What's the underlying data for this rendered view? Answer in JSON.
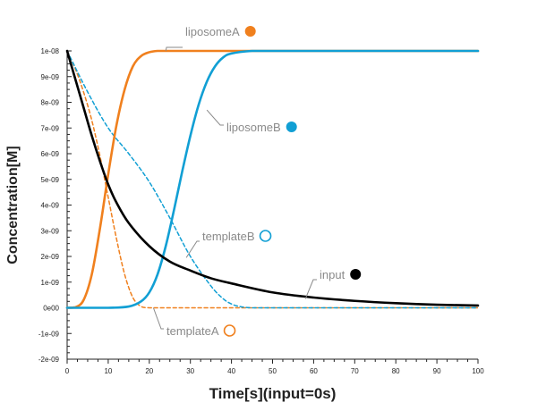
{
  "chart_data": {
    "type": "line",
    "title": "",
    "xlabel": "Time[s](input=0s)",
    "ylabel": "Concentration[M]",
    "xlim": [
      0,
      100
    ],
    "ylim": [
      -2e-09,
      1e-08
    ],
    "x_ticks": [
      0,
      10,
      20,
      30,
      40,
      50,
      60,
      70,
      80,
      90,
      100
    ],
    "x_tick_labels": [
      "0",
      "10",
      "20",
      "30",
      "40",
      "50",
      "60",
      "70",
      "80",
      "90",
      "100"
    ],
    "y_ticks": [
      1e-08,
      9e-09,
      8e-09,
      7e-09,
      6e-09,
      5e-09,
      4e-09,
      3e-09,
      2e-09,
      1e-09,
      0,
      -1e-09,
      -2e-09
    ],
    "y_tick_labels": [
      "1e-08",
      "9e-09",
      "8e-09",
      "7e-09",
      "6e-09",
      "5e-09",
      "4e-09",
      "3e-09",
      "2e-09",
      "1e-09",
      "0e00",
      "-1e-09",
      "-2e-09"
    ],
    "grid": false,
    "series": [
      {
        "name": "liposomeA",
        "color": "#f0801e",
        "style": "solid",
        "marker": "filled",
        "x": [
          0,
          2,
          4,
          6,
          8,
          10,
          12,
          14,
          16,
          18,
          20,
          22,
          24,
          30,
          40,
          50,
          60,
          70,
          80,
          90,
          100
        ],
        "y": [
          0,
          2e-11,
          3e-10,
          1.3e-09,
          3.1e-09,
          5.2e-09,
          7.1e-09,
          8.5e-09,
          9.4e-09,
          9.8e-09,
          9.95e-09,
          1e-08,
          1e-08,
          1e-08,
          1e-08,
          1e-08,
          1e-08,
          1e-08,
          1e-08,
          1e-08,
          1e-08
        ]
      },
      {
        "name": "liposomeB",
        "color": "#119fd4",
        "style": "solid",
        "marker": "filled",
        "x": [
          0,
          10,
          15,
          18,
          20,
          22,
          24,
          26,
          28,
          30,
          32,
          34,
          36,
          38,
          40,
          45,
          50,
          60,
          70,
          80,
          90,
          100
        ],
        "y": [
          0,
          0,
          5e-11,
          2.5e-10,
          6e-10,
          1.3e-09,
          2.4e-09,
          3.8e-09,
          5.3e-09,
          6.7e-09,
          7.9e-09,
          8.8e-09,
          9.4e-09,
          9.75e-09,
          9.9e-09,
          1e-08,
          1e-08,
          1e-08,
          1e-08,
          1e-08,
          1e-08,
          1e-08
        ]
      },
      {
        "name": "templateA",
        "color": "#f0801e",
        "style": "dashed",
        "marker": "hollow",
        "x": [
          0,
          2,
          4,
          6,
          8,
          10,
          12,
          14,
          16,
          18,
          20,
          25,
          30,
          40,
          50,
          60,
          70,
          80,
          90,
          100
        ],
        "y": [
          1e-08,
          9.3e-09,
          8.4e-09,
          7.3e-09,
          5.9e-09,
          4.3e-09,
          2.7e-09,
          1.3e-09,
          4e-10,
          5e-11,
          0,
          0,
          0,
          0,
          0,
          0,
          0,
          0,
          0,
          0
        ]
      },
      {
        "name": "templateB",
        "color": "#119fd4",
        "style": "dashed",
        "marker": "hollow",
        "x": [
          0,
          5,
          10,
          15,
          20,
          25,
          30,
          35,
          38,
          40,
          42,
          45,
          50,
          60,
          70,
          80,
          90,
          100
        ],
        "y": [
          1e-08,
          8.4e-09,
          7e-09,
          6e-09,
          4.9e-09,
          3.5e-09,
          2e-09,
          8.5e-10,
          3.5e-10,
          1.5e-10,
          5e-11,
          0,
          0,
          0,
          0,
          0,
          0,
          0
        ]
      },
      {
        "name": "input",
        "color": "#000000",
        "style": "solid",
        "marker": "filled",
        "x": [
          0,
          2,
          4,
          6,
          8,
          10,
          12,
          15,
          20,
          25,
          30,
          35,
          40,
          50,
          60,
          70,
          80,
          90,
          100
        ],
        "y": [
          1e-08,
          8.9e-09,
          7.8e-09,
          6.7e-09,
          5.7e-09,
          4.8e-09,
          4.1e-09,
          3.3e-09,
          2.4e-09,
          1.8e-09,
          1.45e-09,
          1.15e-09,
          9.5e-10,
          6e-10,
          4e-10,
          2.7e-10,
          1.8e-10,
          1.2e-10,
          9e-11
        ]
      }
    ],
    "annotations": [
      {
        "series": "liposomeA",
        "text": "liposomeA",
        "at_x": 24,
        "at_y": 1e-08
      },
      {
        "series": "liposomeB",
        "text": "liposomeB",
        "at_x": 34,
        "at_y": 7.7e-09
      },
      {
        "series": "templateB",
        "text": "templateB",
        "at_x": 29,
        "at_y": 1.95e-09
      },
      {
        "series": "input",
        "text": "input",
        "at_x": 58,
        "at_y": 3.5e-10
      },
      {
        "series": "templateA",
        "text": "templateA",
        "at_x": 21,
        "at_y": 0
      }
    ]
  }
}
